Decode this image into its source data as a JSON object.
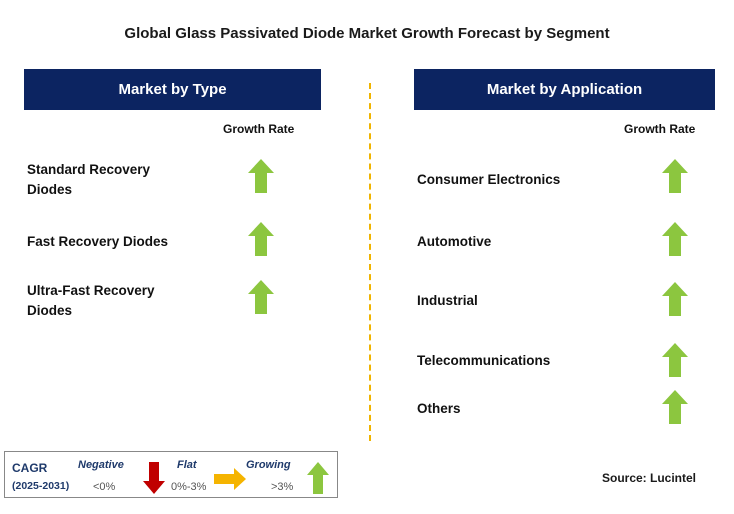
{
  "title": "Global Glass Passivated Diode Market Growth Forecast by Segment",
  "left": {
    "header": "Market by Type",
    "growth_label": "Growth Rate",
    "items": [
      {
        "label_line1": "Standard Recovery",
        "label_line2": "Diodes",
        "trend": "growing"
      },
      {
        "label_line1": "Fast Recovery Diodes",
        "label_line2": "",
        "trend": "growing"
      },
      {
        "label_line1": "Ultra-Fast Recovery",
        "label_line2": "Diodes",
        "trend": "growing"
      }
    ]
  },
  "right": {
    "header": "Market by Application",
    "growth_label": "Growth Rate",
    "items": [
      {
        "label": "Consumer Electronics",
        "trend": "growing"
      },
      {
        "label": "Automotive",
        "trend": "growing"
      },
      {
        "label": "Industrial",
        "trend": "growing"
      },
      {
        "label": "Telecommunications",
        "trend": "growing"
      },
      {
        "label": "Others",
        "trend": "growing"
      }
    ]
  },
  "legend": {
    "cagr": "CAGR",
    "period": "(2025-2031)",
    "negative_label": "Negative",
    "negative_value": "<0%",
    "flat_label": "Flat",
    "flat_value": "0%-3%",
    "growing_label": "Growing",
    "growing_value": ">3%"
  },
  "source": "Source: Lucintel",
  "colors": {
    "header_bg": "#0c2461",
    "growing_arrow": "#8cc63f",
    "negative_arrow": "#c00000",
    "flat_arrow": "#f5b400",
    "divider": "#f0b400"
  }
}
